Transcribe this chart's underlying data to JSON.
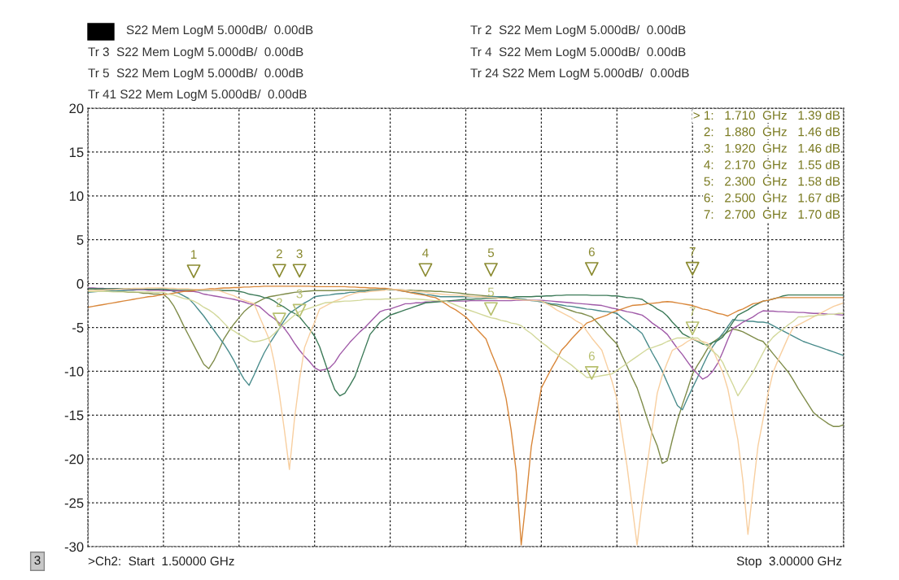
{
  "chart_data": {
    "type": "line",
    "categories": [
      null,
      null,
      null,
      null,
      null,
      null,
      null,
      null,
      null,
      null,
      null,
      null,
      null,
      null,
      null,
      null,
      null,
      null,
      null,
      null,
      null,
      null,
      null,
      null,
      null,
      null,
      null,
      null,
      null,
      null,
      null,
      null,
      null,
      null,
      null,
      null,
      null,
      null,
      null,
      null,
      null,
      null,
      null,
      null,
      null,
      null,
      null,
      null,
      null,
      null,
      null,
      null,
      null,
      null,
      null,
      null,
      null,
      null,
      null,
      null,
      null,
      null,
      null,
      null,
      null,
      null,
      null,
      null,
      null,
      null,
      null,
      null,
      null,
      null,
      null,
      null,
      null,
      null,
      null,
      null,
      null,
      null,
      null,
      null,
      null,
      null,
      null,
      null,
      null,
      null,
      null,
      null,
      null,
      null,
      null,
      null,
      null,
      null,
      null,
      null,
      null,
      null,
      null,
      null,
      null,
      null,
      null,
      null,
      null,
      null,
      null,
      null,
      null,
      null,
      null,
      null,
      null,
      null,
      null,
      null,
      null,
      null,
      null,
      null,
      null,
      null,
      null,
      null,
      null,
      null,
      null,
      null,
      null,
      null,
      null,
      null,
      null,
      null,
      null,
      null,
      null,
      null,
      null,
      null,
      null,
      null,
      null,
      null,
      null,
      null,
      null
    ],
    "ylim": [
      -30,
      20
    ],
    "yticks": [
      -30,
      -25,
      -20,
      -15,
      -10,
      -5,
      0,
      5,
      10,
      15,
      20
    ],
    "grid": true,
    "line_style": "solid",
    "series": [
      {
        "color": "#7f8c4a",
        "values": [
          -0.6,
          -0.6,
          -0.7,
          -0.7,
          -0.8,
          -0.8,
          -0.9,
          -0.9,
          -1.0,
          -1.0,
          -1.0,
          -1.1,
          -1.1,
          -1.2,
          -1.2,
          -1.25,
          -1.7,
          -2.5,
          -3.6,
          -4.8,
          -5.9,
          -7.0,
          -8.1,
          -9.2,
          -9.7,
          -8.8,
          -7.6,
          -6.3,
          -5.4,
          -4.6,
          -3.9,
          -3.2,
          -2.7,
          -2.3,
          -2.0,
          -1.7,
          -1.5,
          -1.4,
          -1.3,
          -1.2,
          -1.1,
          -1.0,
          -0.95,
          -0.9,
          -0.85,
          -0.8,
          -0.8,
          -0.8,
          -0.8,
          -0.8,
          -0.75,
          -0.75,
          -0.75,
          -0.75,
          -0.75,
          -0.75,
          -0.7,
          -0.7,
          -0.7,
          -0.7,
          -0.7,
          -0.7,
          -0.7,
          -0.75,
          -0.75,
          -0.8,
          -0.8,
          -0.85,
          -0.85,
          -0.9,
          -0.9,
          -0.95,
          -1.0,
          -1.05,
          -1.1,
          -1.2,
          -1.25,
          -1.3,
          -1.35,
          -1.4,
          -1.45,
          -1.5,
          -1.55,
          -1.6,
          -1.65,
          -1.7,
          -1.8,
          -1.85,
          -1.9,
          -1.95,
          -2.0,
          -2.2,
          -2.4,
          -2.5,
          -2.7,
          -2.9,
          -3.1,
          -3.3,
          -3.4,
          -3.6,
          -3.8,
          -4.4,
          -5.0,
          -5.7,
          -6.3,
          -6.9,
          -8.2,
          -9.4,
          -10.7,
          -11.9,
          -13.6,
          -15.4,
          -17.1,
          -18.5,
          -20.5,
          -20.2,
          -17.8,
          -15.6,
          -13.8,
          -12.1,
          -10.3,
          -9.3,
          -8.4,
          -7.4,
          -6.7,
          -6.3,
          -5.9,
          -5.5,
          -5.2,
          -5.3,
          -5.5,
          -5.8,
          -6.1,
          -6.4,
          -6.6,
          -7.3,
          -8.0,
          -8.7,
          -9.4,
          -10.1,
          -11.0,
          -12.0,
          -12.9,
          -13.8,
          -14.7,
          -15.2,
          -15.6,
          -16.0,
          -16.3,
          -16.3,
          -16.1
        ]
      },
      {
        "color": "#4a8c8c",
        "values": [
          -1.0,
          -0.95,
          -0.9,
          -0.9,
          -0.85,
          -0.85,
          -0.8,
          -0.8,
          -0.75,
          -0.75,
          -0.7,
          -0.7,
          -0.65,
          -0.65,
          -0.6,
          -0.6,
          -0.7,
          -0.9,
          -1.1,
          -1.4,
          -1.7,
          -2.3,
          -3.0,
          -3.7,
          -4.5,
          -5.3,
          -6.1,
          -6.9,
          -7.8,
          -8.8,
          -9.9,
          -10.9,
          -11.6,
          -10.4,
          -9.1,
          -7.9,
          -6.9,
          -6.0,
          -5.1,
          -4.2,
          -3.4,
          -3.0,
          -2.6,
          -2.2,
          -1.9,
          -1.5,
          -1.4,
          -1.35,
          -1.3,
          -1.2,
          -1.15,
          -1.1,
          -1.0,
          -1.0,
          -0.9,
          -0.9,
          -0.8,
          -0.75,
          -0.7,
          -0.65,
          -0.6,
          -0.7,
          -0.8,
          -0.9,
          -1.0,
          -1.05,
          -1.15,
          -1.25,
          -1.3,
          -1.4,
          -1.5,
          -1.5,
          -1.5,
          -1.5,
          -1.5,
          -1.5,
          -1.5,
          -1.5,
          -1.5,
          -1.5,
          -1.5,
          -1.5,
          -1.5,
          -1.5,
          -1.6,
          -1.7,
          -1.75,
          -1.85,
          -1.95,
          -2.0,
          -2.1,
          -2.2,
          -2.3,
          -2.35,
          -2.45,
          -2.55,
          -2.6,
          -2.7,
          -2.8,
          -2.9,
          -2.95,
          -3.05,
          -3.15,
          -3.2,
          -3.3,
          -3.4,
          -3.9,
          -4.3,
          -4.8,
          -5.2,
          -5.7,
          -6.8,
          -7.9,
          -8.9,
          -10.0,
          -11.3,
          -12.6,
          -13.9,
          -14.4,
          -13.1,
          -11.9,
          -10.7,
          -9.4,
          -8.2,
          -7.2,
          -6.4,
          -5.7,
          -4.9,
          -4.1,
          -4.2,
          -4.2,
          -4.3,
          -4.3,
          -4.4,
          -4.4,
          -4.5,
          -4.8,
          -5.1,
          -5.4,
          -5.7,
          -6.0,
          -6.3,
          -6.6,
          -6.8,
          -7.0,
          -7.2,
          -7.4,
          -7.6,
          -7.8,
          -8.0,
          -8.2
        ]
      },
      {
        "color": "#a05aa8",
        "values": [
          -0.5,
          -0.5,
          -0.55,
          -0.55,
          -0.6,
          -0.6,
          -0.6,
          -0.65,
          -0.65,
          -0.7,
          -0.7,
          -0.7,
          -0.75,
          -0.75,
          -0.75,
          -0.8,
          -0.8,
          -0.8,
          -0.85,
          -0.85,
          -0.9,
          -0.9,
          -1.0,
          -1.2,
          -1.3,
          -1.4,
          -1.5,
          -1.6,
          -1.7,
          -1.8,
          -1.95,
          -2.1,
          -2.3,
          -2.4,
          -2.6,
          -3.1,
          -3.6,
          -4.0,
          -4.5,
          -5.1,
          -5.9,
          -6.8,
          -7.6,
          -8.3,
          -8.9,
          -9.6,
          -9.9,
          -9.8,
          -9.6,
          -9.0,
          -8.1,
          -7.4,
          -6.7,
          -6.1,
          -5.5,
          -5.0,
          -4.4,
          -3.8,
          -3.2,
          -3.0,
          -2.9,
          -2.7,
          -2.5,
          -2.3,
          -2.3,
          -2.2,
          -2.2,
          -2.1,
          -2.1,
          -2.05,
          -2.0,
          -2.0,
          -2.0,
          -2.0,
          -2.0,
          -2.0,
          -1.95,
          -1.95,
          -1.95,
          -1.95,
          -1.95,
          -1.95,
          -1.95,
          -1.95,
          -1.95,
          -1.9,
          -1.9,
          -1.9,
          -1.9,
          -1.9,
          -1.9,
          -1.95,
          -2.0,
          -2.05,
          -2.1,
          -2.15,
          -2.2,
          -2.25,
          -2.3,
          -2.35,
          -2.4,
          -2.45,
          -2.5,
          -2.65,
          -2.8,
          -2.9,
          -3.05,
          -3.2,
          -3.3,
          -3.45,
          -3.6,
          -4.0,
          -4.5,
          -4.9,
          -5.3,
          -5.8,
          -6.6,
          -7.4,
          -8.1,
          -8.9,
          -9.7,
          -10.3,
          -10.9,
          -10.6,
          -10.0,
          -9.1,
          -7.8,
          -6.4,
          -5.1,
          -4.8,
          -4.4,
          -4.1,
          -3.8,
          -3.4,
          -3.1,
          -3.15,
          -3.15,
          -3.2,
          -3.2,
          -3.25,
          -3.25,
          -3.3,
          -3.3,
          -3.35,
          -3.4,
          -3.4,
          -3.45,
          -3.5,
          -3.5,
          -3.55,
          -3.6
        ]
      },
      {
        "color": "#3c7a58",
        "values": [
          -0.6,
          -0.6,
          -0.6,
          -0.6,
          -0.6,
          -0.6,
          -0.6,
          -0.6,
          -0.6,
          -0.6,
          -0.6,
          -0.6,
          -0.65,
          -0.65,
          -0.65,
          -0.65,
          -0.7,
          -0.7,
          -0.7,
          -0.7,
          -0.7,
          -0.7,
          -0.75,
          -0.75,
          -0.75,
          -0.75,
          -0.75,
          -0.8,
          -0.8,
          -0.8,
          -0.9,
          -1.0,
          -1.2,
          -1.3,
          -1.4,
          -1.6,
          -1.7,
          -2.0,
          -2.4,
          -2.7,
          -3.1,
          -3.4,
          -3.8,
          -4.5,
          -5.2,
          -6.0,
          -7.2,
          -8.9,
          -10.6,
          -12.1,
          -12.8,
          -12.5,
          -11.6,
          -10.6,
          -9.0,
          -7.4,
          -5.8,
          -5.1,
          -4.4,
          -4.0,
          -3.6,
          -3.4,
          -3.2,
          -3.0,
          -2.8,
          -2.6,
          -2.4,
          -2.2,
          -2.15,
          -2.1,
          -2.05,
          -2.0,
          -1.95,
          -1.9,
          -1.85,
          -1.8,
          -1.8,
          -1.75,
          -1.75,
          -1.7,
          -1.7,
          -1.7,
          -1.6,
          -1.6,
          -1.6,
          -1.5,
          -1.5,
          -1.5,
          -1.5,
          -1.45,
          -1.45,
          -1.4,
          -1.4,
          -1.35,
          -1.35,
          -1.3,
          -1.3,
          -1.3,
          -1.3,
          -1.3,
          -1.35,
          -1.35,
          -1.35,
          -1.35,
          -1.4,
          -1.4,
          -1.5,
          -1.6,
          -1.6,
          -1.7,
          -1.8,
          -2.2,
          -2.5,
          -2.9,
          -3.2,
          -3.7,
          -4.4,
          -5.0,
          -5.7,
          -6.0,
          -6.3,
          -6.6,
          -6.9,
          -7.0,
          -6.7,
          -6.5,
          -6.1,
          -5.3,
          -4.4,
          -3.6,
          -3.3,
          -3.0,
          -2.6,
          -2.3,
          -2.0,
          -1.9,
          -1.75,
          -1.6,
          -1.4,
          -1.3,
          -1.3,
          -1.3,
          -1.3,
          -1.3,
          -1.3,
          -1.3,
          -1.3,
          -1.3,
          -1.3,
          -1.3,
          -1.3
        ]
      },
      {
        "color": "#d9873a",
        "values": [
          -2.7,
          -2.6,
          -2.5,
          -2.4,
          -2.3,
          -2.2,
          -2.1,
          -2.0,
          -1.9,
          -1.8,
          -1.7,
          -1.6,
          -1.5,
          -1.45,
          -1.35,
          -1.25,
          -1.2,
          -1.1,
          -1.0,
          -0.9,
          -0.85,
          -0.8,
          -0.7,
          -0.65,
          -0.6,
          -0.6,
          -0.55,
          -0.5,
          -0.5,
          -0.45,
          -0.45,
          -0.4,
          -0.4,
          -0.35,
          -0.35,
          -0.3,
          -0.3,
          -0.3,
          -0.3,
          -0.3,
          -0.3,
          -0.3,
          -0.3,
          -0.3,
          -0.3,
          -0.35,
          -0.35,
          -0.35,
          -0.35,
          -0.35,
          -0.35,
          -0.35,
          -0.4,
          -0.4,
          -0.45,
          -0.45,
          -0.5,
          -0.5,
          -0.55,
          -0.55,
          -0.6,
          -0.7,
          -0.8,
          -0.9,
          -1.05,
          -1.15,
          -1.25,
          -1.35,
          -1.5,
          -1.6,
          -1.95,
          -2.3,
          -2.7,
          -3.0,
          -3.4,
          -3.8,
          -4.4,
          -5.1,
          -5.7,
          -6.3,
          -7.8,
          -9.2,
          -10.7,
          -13.1,
          -16.7,
          -21.4,
          -29.8,
          -24.5,
          -18.6,
          -15.2,
          -11.9,
          -10.8,
          -9.7,
          -8.7,
          -7.6,
          -7.0,
          -6.3,
          -5.7,
          -5.1,
          -4.5,
          -4.3,
          -4.0,
          -3.8,
          -3.6,
          -3.3,
          -3.1,
          -2.9,
          -2.7,
          -2.5,
          -2.45,
          -2.4,
          -2.3,
          -2.25,
          -2.2,
          -2.1,
          -2.05,
          -2.1,
          -2.2,
          -2.3,
          -2.4,
          -2.5,
          -2.7,
          -2.9,
          -3.0,
          -3.2,
          -3.4,
          -3.5,
          -3.7,
          -3.4,
          -3.1,
          -2.9,
          -2.6,
          -2.3,
          -2.2,
          -2.0,
          -1.9,
          -1.75,
          -1.6,
          -1.6,
          -1.6,
          -1.6,
          -1.6,
          -1.6,
          -1.6,
          -1.6,
          -1.6,
          -1.6,
          -1.6,
          -1.6,
          -1.6,
          -1.6
        ]
      },
      {
        "color": "#f8cfa0",
        "values": [
          -0.8,
          -0.8,
          -0.75,
          -0.75,
          -0.7,
          -0.7,
          -0.65,
          -0.6,
          -0.6,
          -0.55,
          -0.55,
          -0.55,
          -0.5,
          -0.5,
          -0.5,
          -0.5,
          -0.55,
          -0.55,
          -0.6,
          -0.6,
          -0.6,
          -0.65,
          -0.65,
          -0.7,
          -0.7,
          -0.75,
          -0.8,
          -1.0,
          -1.2,
          -1.4,
          -1.7,
          -1.9,
          -2.1,
          -2.3,
          -3.7,
          -5.0,
          -6.4,
          -9.0,
          -12.6,
          -16.7,
          -21.2,
          -15.5,
          -11.0,
          -7.3,
          -5.8,
          -4.4,
          -2.9,
          -2.6,
          -2.3,
          -2.0,
          -1.8,
          -1.5,
          -1.3,
          -1.1,
          -1.0,
          -1.0,
          -0.9,
          -0.85,
          -0.8,
          -0.75,
          -0.6,
          -0.65,
          -0.7,
          -0.75,
          -0.85,
          -0.9,
          -0.95,
          -1.0,
          -1.1,
          -1.15,
          -1.2,
          -1.25,
          -1.3,
          -1.3,
          -1.35,
          -1.4,
          -1.45,
          -1.5,
          -1.5,
          -1.55,
          -1.6,
          -1.65,
          -1.7,
          -1.7,
          -1.75,
          -1.8,
          -1.85,
          -1.9,
          -1.9,
          -1.95,
          -2.0,
          -2.3,
          -2.6,
          -3.0,
          -3.3,
          -3.6,
          -3.9,
          -4.3,
          -4.6,
          -5.4,
          -6.2,
          -6.9,
          -7.6,
          -9.3,
          -11.1,
          -13.2,
          -17.0,
          -20.8,
          -25.3,
          -29.8,
          -25.0,
          -20.8,
          -16.5,
          -12.5,
          -10.5,
          -9.0,
          -7.6,
          -7.3,
          -7.0,
          -6.6,
          -6.3,
          -6.5,
          -6.6,
          -6.8,
          -7.5,
          -8.8,
          -10.1,
          -12.0,
          -14.9,
          -17.8,
          -22.5,
          -28.6,
          -23.5,
          -18.5,
          -15.5,
          -12.5,
          -10.1,
          -8.7,
          -7.4,
          -6.1,
          -5.0,
          -4.7,
          -4.4,
          -4.1,
          -3.8,
          -3.5,
          -3.2,
          -2.9,
          -2.6,
          -2.4,
          -2.2
        ]
      },
      {
        "color": "#d2d89a",
        "values": [
          -0.9,
          -0.9,
          -0.9,
          -0.9,
          -0.9,
          -0.95,
          -0.95,
          -0.95,
          -0.95,
          -0.95,
          -0.95,
          -0.95,
          -0.95,
          -1.0,
          -1.0,
          -1.0,
          -1.2,
          -1.3,
          -1.5,
          -1.7,
          -1.8,
          -2.0,
          -2.3,
          -2.7,
          -3.0,
          -3.4,
          -3.9,
          -4.5,
          -5.1,
          -5.4,
          -5.8,
          -6.1,
          -6.5,
          -6.65,
          -6.55,
          -6.4,
          -6.2,
          -5.7,
          -5.1,
          -4.6,
          -4.1,
          -3.6,
          -3.2,
          -3.0,
          -2.8,
          -2.6,
          -2.4,
          -2.2,
          -2.15,
          -2.1,
          -2.05,
          -2.0,
          -2.0,
          -1.95,
          -1.9,
          -1.8,
          -1.8,
          -1.8,
          -1.8,
          -1.75,
          -1.75,
          -1.75,
          -1.7,
          -1.7,
          -1.75,
          -1.75,
          -1.8,
          -1.85,
          -1.9,
          -1.95,
          -1.95,
          -2.0,
          -2.2,
          -2.45,
          -2.7,
          -2.9,
          -3.1,
          -3.3,
          -3.5,
          -3.7,
          -3.9,
          -4.0,
          -4.2,
          -4.3,
          -4.5,
          -4.6,
          -4.8,
          -5.3,
          -5.7,
          -6.2,
          -6.7,
          -7.1,
          -7.6,
          -8.0,
          -8.5,
          -8.9,
          -9.3,
          -9.8,
          -10.2,
          -10.7,
          -10.7,
          -10.6,
          -10.5,
          -10.4,
          -10.3,
          -9.9,
          -9.5,
          -9.1,
          -8.7,
          -8.3,
          -7.9,
          -7.5,
          -7.3,
          -7.1,
          -6.9,
          -6.6,
          -6.4,
          -6.2,
          -6.2,
          -6.2,
          -6.2,
          -6.2,
          -6.7,
          -7.2,
          -7.7,
          -8.2,
          -9.0,
          -10.3,
          -11.5,
          -12.8,
          -11.9,
          -11.0,
          -10.1,
          -9.0,
          -7.9,
          -6.8,
          -6.1,
          -5.6,
          -5.2,
          -4.7,
          -4.3,
          -3.8,
          -3.8,
          -3.7,
          -3.7,
          -3.6,
          -3.6,
          -3.5,
          -3.5,
          -3.4,
          -3.4
        ]
      },
      {
        "type": "scatter",
        "marker": "triangle",
        "color": "#8a8a30",
        "values": [
          null,
          null,
          null,
          null,
          null,
          null,
          null,
          null,
          null,
          null,
          null,
          null,
          null,
          null,
          null,
          null,
          null,
          null,
          null,
          null,
          null,
          1.39,
          null,
          null,
          null,
          null,
          null,
          null,
          null,
          null,
          null,
          null,
          null,
          null,
          null,
          null,
          null,
          null,
          1.46,
          null,
          null,
          null,
          1.46,
          null,
          null,
          null,
          null,
          null,
          null,
          null,
          null,
          null,
          null,
          null,
          null,
          null,
          null,
          null,
          null,
          null,
          null,
          null,
          null,
          null,
          null,
          null,
          null,
          1.55,
          null,
          null,
          null,
          null,
          null,
          null,
          null,
          null,
          null,
          null,
          null,
          null,
          1.58,
          null,
          null,
          null,
          null,
          null,
          null,
          null,
          null,
          null,
          null,
          null,
          null,
          null,
          null,
          null,
          null,
          null,
          null,
          null,
          1.67,
          null,
          null,
          null,
          null,
          null,
          null,
          null,
          null,
          null,
          null,
          null,
          null,
          null,
          null,
          null,
          null,
          null,
          null,
          null,
          1.7,
          null,
          null,
          null,
          null,
          null,
          null,
          null,
          null,
          null,
          null,
          null,
          null,
          null,
          null,
          null,
          null,
          null,
          null,
          null,
          null,
          null,
          null,
          null,
          null,
          null,
          null,
          null,
          null,
          null,
          null
        ]
      },
      {
        "type": "scatter",
        "marker": "triangle",
        "color": "#b8c070",
        "values": [
          null,
          null,
          null,
          null,
          null,
          null,
          null,
          null,
          null,
          null,
          null,
          null,
          null,
          null,
          null,
          null,
          null,
          null,
          null,
          null,
          null,
          null,
          null,
          null,
          null,
          null,
          null,
          null,
          null,
          null,
          null,
          null,
          null,
          null,
          null,
          null,
          null,
          null,
          -4.1,
          null,
          null,
          null,
          -3.1,
          null,
          null,
          null,
          null,
          null,
          null,
          null,
          null,
          null,
          null,
          null,
          null,
          null,
          null,
          null,
          null,
          null,
          null,
          null,
          null,
          null,
          null,
          null,
          null,
          null,
          null,
          null,
          null,
          null,
          null,
          null,
          null,
          null,
          null,
          null,
          null,
          null,
          -2.9,
          null,
          null,
          null,
          null,
          null,
          null,
          null,
          null,
          null,
          null,
          null,
          null,
          null,
          null,
          null,
          null,
          null,
          null,
          null,
          -10.2,
          null,
          null,
          null,
          null,
          null,
          null,
          null,
          null,
          null,
          null,
          null,
          null,
          null,
          null,
          null,
          null,
          null,
          null,
          null,
          -5.1,
          null,
          null,
          null,
          null,
          null,
          null,
          null,
          null,
          null,
          null,
          null,
          null,
          null,
          null,
          null,
          null,
          null,
          null,
          null,
          null,
          null,
          null,
          null,
          null,
          null,
          null,
          null,
          null,
          null,
          null
        ]
      }
    ],
    "annotations": [
      "S22 Mem LogM 5.000dB/  0.00dB",
      "Tr 2  S22 Mem LogM 5.000dB/  0.00dB",
      "Tr 3  S22 Mem LogM 5.000dB/  0.00dB",
      "Tr 4  S22 Mem LogM 5.000dB/  0.00dB",
      "Tr 5  S22 Mem LogM 5.000dB/  0.00dB",
      "Tr 24 S22 Mem LogM 5.000dB/  0.00dB",
      "Tr 41 S22 Mem LogM 5.000dB/  0.00dB",
      "> 1:   1.710  GHz   1.39 dB",
      "2:   1.880  GHz   1.46 dB",
      "3:   1.920  GHz   1.46 dB",
      "4:   2.170  GHz   1.55 dB",
      "5:   2.300  GHz   1.58 dB",
      "6:   2.500  GHz   1.67 dB",
      "7:   2.700  GHz   1.70 dB",
      "3",
      ">Ch2:  Start  1.50000 GHz",
      "Stop  3.00000 GHz",
      {
        "text": "1",
        "y": 1.39
      },
      {
        "text": "2",
        "y": 1.46
      },
      {
        "text": "3",
        "y": 1.46
      },
      {
        "text": "4",
        "y": 1.55
      },
      {
        "text": "5",
        "y": 1.58
      },
      {
        "text": "6",
        "y": 1.67
      },
      {
        "text": "7",
        "y": 1.7
      },
      {
        "text": "2",
        "y": -4.1
      },
      {
        "text": "3",
        "y": -3.1
      },
      {
        "text": "5",
        "y": -2.9
      },
      {
        "text": "6",
        "y": -10.2
      },
      {
        "text": "7",
        "y": -5.1
      }
    ]
  }
}
